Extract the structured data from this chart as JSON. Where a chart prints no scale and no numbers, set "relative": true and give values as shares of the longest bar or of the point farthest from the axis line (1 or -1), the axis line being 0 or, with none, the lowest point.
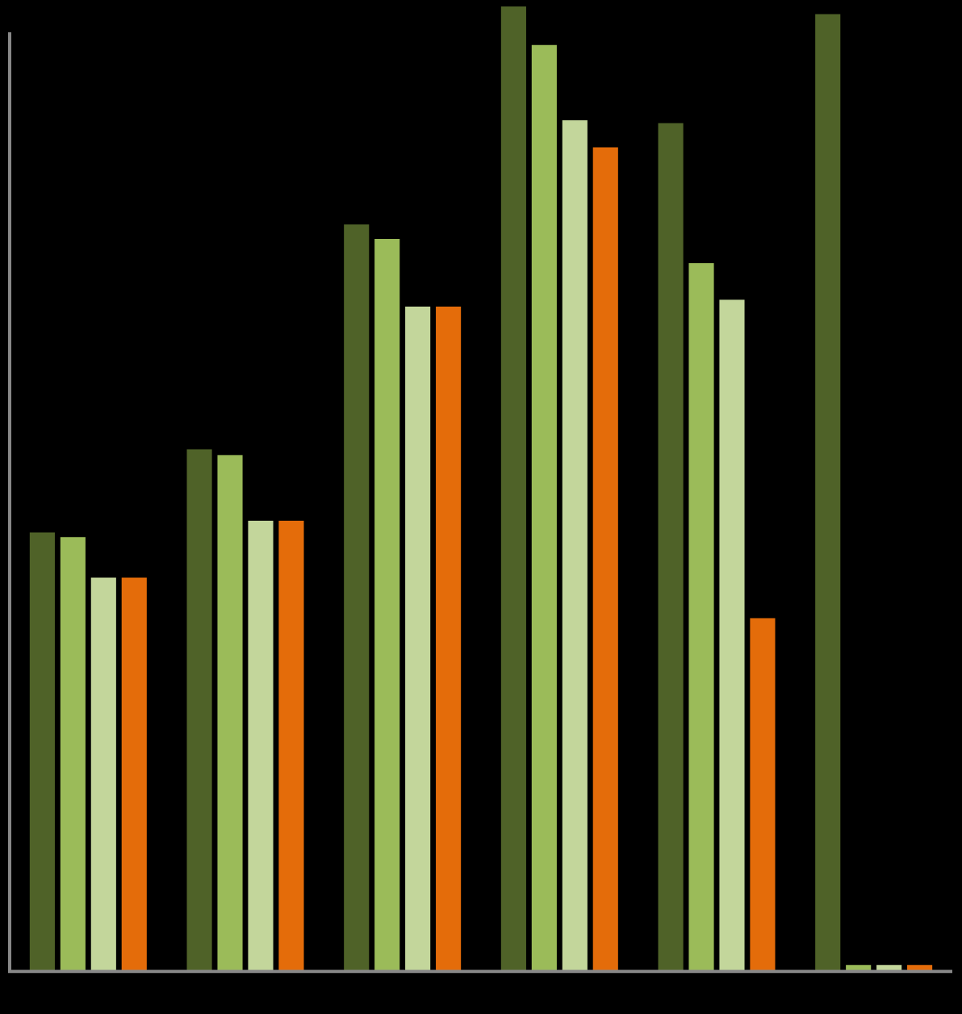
{
  "chart_data": {
    "type": "bar",
    "relative": true,
    "categories": [
      null,
      null,
      null,
      null,
      null,
      null
    ],
    "series": [
      {
        "color": "#4f6228",
        "values": [
          0.455,
          0.541,
          0.774,
          1,
          0.879,
          0.992
        ]
      },
      {
        "color": "#9bbb59",
        "values": [
          0.45,
          0.535,
          0.759,
          0.96,
          0.734,
          0.003
        ]
      },
      {
        "color": "#c3d69b",
        "values": [
          0.408,
          0.467,
          0.689,
          0.882,
          0.696,
          0.003
        ]
      },
      {
        "color": "#e46c0a",
        "values": [
          0.408,
          0.467,
          0.689,
          0.854,
          0.366,
          0.003
        ]
      }
    ],
    "legend": false
  }
}
